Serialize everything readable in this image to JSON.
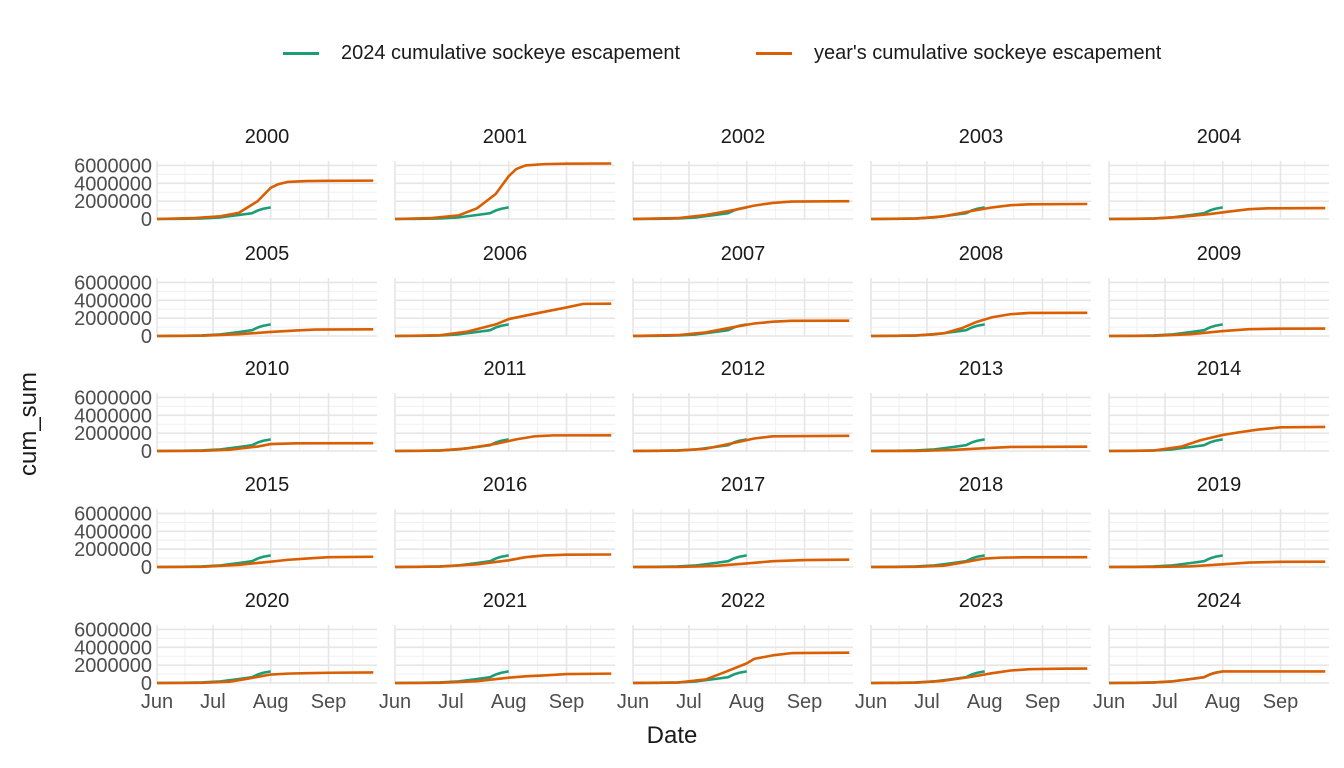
{
  "chart_data": {
    "type": "line",
    "title": "",
    "xlabel": "Date",
    "ylabel": "cum_sum",
    "x_tick_labels": [
      "Jun",
      "Jul",
      "Aug",
      "Sep"
    ],
    "y_tick_labels": [
      "0",
      "2000000",
      "4000000",
      "6000000"
    ],
    "ylim": [
      0,
      6500000
    ],
    "grid": true,
    "legend_position": "top",
    "legend": [
      {
        "name": "2024 cumulative sockeye escapement",
        "color": "#1b9e77"
      },
      {
        "name": "year's cumulative sockeye escapement",
        "color": "#d95f02"
      }
    ],
    "reference_series": {
      "name": "2024 cumulative sockeye escapement",
      "color": "#1b9e77",
      "x": [
        "2024-06-01",
        "2024-06-15",
        "2024-06-25",
        "2024-07-05",
        "2024-07-15",
        "2024-07-22",
        "2024-07-25",
        "2024-07-28",
        "2024-08-01"
      ],
      "values": [
        0,
        20000,
        60000,
        180000,
        450000,
        650000,
        950000,
        1150000,
        1300000
      ]
    },
    "panels": [
      {
        "facet": "2000",
        "x": [
          "2000-06-01",
          "2000-06-20",
          "2000-07-05",
          "2000-07-15",
          "2000-07-25",
          "2000-08-01",
          "2000-08-05",
          "2000-08-10",
          "2000-08-20",
          "2000-09-01",
          "2000-09-25"
        ],
        "values": [
          0,
          100000,
          300000,
          700000,
          2000000,
          3500000,
          3900000,
          4150000,
          4250000,
          4280000,
          4300000
        ]
      },
      {
        "facet": "2001",
        "x": [
          "2001-06-01",
          "2001-06-20",
          "2001-07-05",
          "2001-07-15",
          "2001-07-25",
          "2001-08-01",
          "2001-08-05",
          "2001-08-10",
          "2001-08-20",
          "2001-09-01",
          "2001-09-25"
        ],
        "values": [
          0,
          100000,
          400000,
          1200000,
          2800000,
          4800000,
          5600000,
          6000000,
          6150000,
          6200000,
          6220000
        ]
      },
      {
        "facet": "2002",
        "x": [
          "2002-06-01",
          "2002-06-25",
          "2002-07-10",
          "2002-07-25",
          "2002-08-05",
          "2002-08-15",
          "2002-08-25",
          "2002-09-25"
        ],
        "values": [
          0,
          100000,
          450000,
          1000000,
          1500000,
          1800000,
          1950000,
          2000000
        ]
      },
      {
        "facet": "2003",
        "x": [
          "2003-06-01",
          "2003-06-25",
          "2003-07-10",
          "2003-07-25",
          "2003-08-05",
          "2003-08-15",
          "2003-08-25",
          "2003-09-25"
        ],
        "values": [
          0,
          50000,
          300000,
          900000,
          1300000,
          1550000,
          1650000,
          1680000
        ]
      },
      {
        "facet": "2004",
        "x": [
          "2004-06-01",
          "2004-06-25",
          "2004-07-10",
          "2004-07-25",
          "2004-08-05",
          "2004-08-15",
          "2004-08-25",
          "2004-09-25"
        ],
        "values": [
          0,
          50000,
          250000,
          550000,
          850000,
          1100000,
          1200000,
          1220000
        ]
      },
      {
        "facet": "2005",
        "x": [
          "2005-06-01",
          "2005-06-25",
          "2005-07-15",
          "2005-08-01",
          "2005-08-15",
          "2005-08-25",
          "2005-09-25"
        ],
        "values": [
          0,
          30000,
          200000,
          450000,
          620000,
          720000,
          750000
        ]
      },
      {
        "facet": "2006",
        "x": [
          "2006-06-01",
          "2006-06-25",
          "2006-07-10",
          "2006-07-25",
          "2006-08-01",
          "2006-08-15",
          "2006-09-01",
          "2006-09-10",
          "2006-09-25"
        ],
        "values": [
          0,
          80000,
          500000,
          1300000,
          1900000,
          2500000,
          3200000,
          3600000,
          3620000
        ]
      },
      {
        "facet": "2007",
        "x": [
          "2007-06-01",
          "2007-06-25",
          "2007-07-10",
          "2007-07-25",
          "2007-08-05",
          "2007-08-15",
          "2007-08-25",
          "2007-09-25"
        ],
        "values": [
          0,
          100000,
          400000,
          1000000,
          1400000,
          1600000,
          1700000,
          1720000
        ]
      },
      {
        "facet": "2008",
        "x": [
          "2008-06-01",
          "2008-06-25",
          "2008-07-10",
          "2008-07-20",
          "2008-07-28",
          "2008-08-05",
          "2008-08-15",
          "2008-08-25",
          "2008-09-25"
        ],
        "values": [
          0,
          50000,
          300000,
          900000,
          1600000,
          2100000,
          2450000,
          2580000,
          2600000
        ]
      },
      {
        "facet": "2009",
        "x": [
          "2009-06-01",
          "2009-06-25",
          "2009-07-15",
          "2009-08-01",
          "2009-08-15",
          "2009-09-01",
          "2009-09-25"
        ],
        "values": [
          0,
          20000,
          200000,
          550000,
          760000,
          820000,
          830000
        ]
      },
      {
        "facet": "2010",
        "x": [
          "2010-06-01",
          "2010-06-25",
          "2010-07-10",
          "2010-07-25",
          "2010-08-01",
          "2010-08-15",
          "2010-09-25"
        ],
        "values": [
          0,
          20000,
          150000,
          500000,
          780000,
          860000,
          880000
        ]
      },
      {
        "facet": "2011",
        "x": [
          "2011-06-01",
          "2011-06-25",
          "2011-07-10",
          "2011-07-25",
          "2011-08-05",
          "2011-08-15",
          "2011-08-25",
          "2011-09-25"
        ],
        "values": [
          0,
          50000,
          300000,
          800000,
          1300000,
          1650000,
          1750000,
          1760000
        ]
      },
      {
        "facet": "2012",
        "x": [
          "2012-06-01",
          "2012-06-25",
          "2012-07-10",
          "2012-07-25",
          "2012-08-05",
          "2012-08-15",
          "2012-09-25"
        ],
        "values": [
          0,
          50000,
          250000,
          900000,
          1400000,
          1650000,
          1700000
        ]
      },
      {
        "facet": "2013",
        "x": [
          "2013-06-01",
          "2013-06-25",
          "2013-07-15",
          "2013-08-01",
          "2013-08-15",
          "2013-09-25"
        ],
        "values": [
          0,
          10000,
          120000,
          320000,
          450000,
          480000
        ]
      },
      {
        "facet": "2014",
        "x": [
          "2014-06-01",
          "2014-06-25",
          "2014-07-10",
          "2014-07-20",
          "2014-08-01",
          "2014-08-10",
          "2014-08-20",
          "2014-09-01",
          "2014-09-25"
        ],
        "values": [
          0,
          50000,
          500000,
          1200000,
          1800000,
          2100000,
          2400000,
          2650000,
          2700000
        ]
      },
      {
        "facet": "2015",
        "x": [
          "2015-06-01",
          "2015-06-25",
          "2015-07-15",
          "2015-08-01",
          "2015-08-10",
          "2015-08-20",
          "2015-09-01",
          "2015-09-25"
        ],
        "values": [
          0,
          20000,
          250000,
          600000,
          800000,
          950000,
          1100000,
          1150000
        ]
      },
      {
        "facet": "2016",
        "x": [
          "2016-06-01",
          "2016-06-25",
          "2016-07-15",
          "2016-08-01",
          "2016-08-10",
          "2016-08-20",
          "2016-09-01",
          "2016-09-25"
        ],
        "values": [
          0,
          50000,
          300000,
          750000,
          1100000,
          1300000,
          1380000,
          1400000
        ]
      },
      {
        "facet": "2017",
        "x": [
          "2017-06-01",
          "2017-06-25",
          "2017-07-15",
          "2017-08-01",
          "2017-08-15",
          "2017-09-01",
          "2017-09-25"
        ],
        "values": [
          0,
          10000,
          120000,
          400000,
          650000,
          780000,
          820000
        ]
      },
      {
        "facet": "2018",
        "x": [
          "2018-06-01",
          "2018-06-25",
          "2018-07-10",
          "2018-07-20",
          "2018-08-01",
          "2018-08-10",
          "2018-08-20",
          "2018-09-25"
        ],
        "values": [
          0,
          20000,
          150000,
          500000,
          950000,
          1050000,
          1080000,
          1100000
        ]
      },
      {
        "facet": "2019",
        "x": [
          "2019-06-01",
          "2019-06-25",
          "2019-07-15",
          "2019-08-01",
          "2019-08-15",
          "2019-09-01",
          "2019-09-25"
        ],
        "values": [
          0,
          10000,
          80000,
          300000,
          500000,
          580000,
          600000
        ]
      },
      {
        "facet": "2020",
        "x": [
          "2020-06-01",
          "2020-06-25",
          "2020-07-10",
          "2020-07-20",
          "2020-08-01",
          "2020-08-10",
          "2020-08-20",
          "2020-09-01",
          "2020-09-25"
        ],
        "values": [
          0,
          20000,
          150000,
          500000,
          950000,
          1050000,
          1100000,
          1150000,
          1180000
        ]
      },
      {
        "facet": "2021",
        "x": [
          "2021-06-01",
          "2021-06-25",
          "2021-07-15",
          "2021-08-01",
          "2021-08-10",
          "2021-08-20",
          "2021-09-01",
          "2021-09-25"
        ],
        "values": [
          0,
          20000,
          200000,
          600000,
          750000,
          850000,
          1000000,
          1050000
        ]
      },
      {
        "facet": "2022",
        "x": [
          "2022-06-01",
          "2022-06-25",
          "2022-07-10",
          "2022-07-20",
          "2022-08-01",
          "2022-08-05",
          "2022-08-15",
          "2022-08-25",
          "2022-09-25"
        ],
        "values": [
          0,
          50000,
          400000,
          1200000,
          2200000,
          2700000,
          3100000,
          3350000,
          3400000
        ]
      },
      {
        "facet": "2023",
        "x": [
          "2023-06-01",
          "2023-06-25",
          "2023-07-10",
          "2023-07-25",
          "2023-08-05",
          "2023-08-15",
          "2023-08-25",
          "2023-09-10",
          "2023-09-25"
        ],
        "values": [
          0,
          30000,
          250000,
          700000,
          1100000,
          1400000,
          1550000,
          1600000,
          1620000
        ]
      },
      {
        "facet": "2024",
        "x": [
          "2024-06-01",
          "2024-06-15",
          "2024-06-25",
          "2024-07-05",
          "2024-07-15",
          "2024-07-22",
          "2024-07-25",
          "2024-07-28",
          "2024-08-01",
          "2024-08-15",
          "2024-09-25"
        ],
        "values": [
          0,
          20000,
          60000,
          180000,
          450000,
          650000,
          950000,
          1150000,
          1300000,
          1300000,
          1300000
        ]
      }
    ]
  }
}
